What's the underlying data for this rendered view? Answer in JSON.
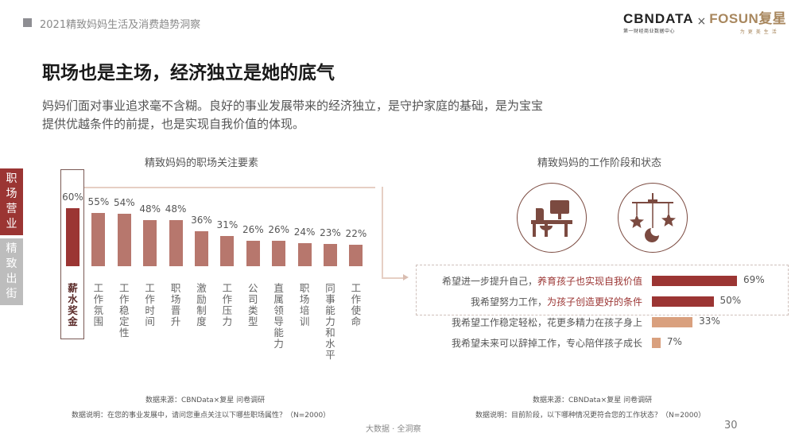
{
  "header": {
    "title": "2021精致妈妈生活及消费趋势洞察",
    "logo": {
      "cbn_main": "CBNDATA",
      "cbn_sub": "第一财经商业数据中心",
      "separator": "×",
      "fosun_main": "FOSUN复星",
      "fosun_sub": "为更美生活"
    }
  },
  "page": {
    "title": "职场也是主场，经济独立是她的底气",
    "intro": "妈妈们面对事业追求毫不含糊。良好的事业发展带来的经济独立，是守护家庭的基础，是为宝宝提供优越条件的前提，也是实现自我价值的体现。"
  },
  "side_tabs": [
    {
      "label": "职场营业",
      "active": true
    },
    {
      "label": "精致出街",
      "active": false
    }
  ],
  "colors": {
    "accent": "#9b3533",
    "bar_secondary": "#b7776d",
    "bar_light": "#d9a07e",
    "icon": "#7b4a40"
  },
  "chart_data": [
    {
      "type": "bar",
      "title": "精致妈妈的职场关注要素",
      "categories": [
        "薪水奖金",
        "工作氛围",
        "工作稳定性",
        "工作时间",
        "职场晋升",
        "激励制度",
        "工作压力",
        "公司类型",
        "直属领导能力",
        "职场培训",
        "同事能力和水平",
        "工作使命"
      ],
      "values": [
        60,
        55,
        54,
        48,
        48,
        36,
        31,
        26,
        26,
        24,
        23,
        22
      ],
      "value_labels": [
        "60%",
        "55%",
        "54%",
        "48%",
        "48%",
        "36%",
        "31%",
        "26%",
        "26%",
        "24%",
        "23%",
        "22%"
      ],
      "highlighted": "薪水奖金",
      "xlabel": "",
      "ylabel": "",
      "ylim": [
        0,
        70
      ],
      "grid": false,
      "source": "数据来源：CBNData×复星 问卷调研",
      "note": "数据说明：在您的事业发展中，请问您重点关注以下哪些职场属性？（N=2000）"
    },
    {
      "type": "bar",
      "orientation": "horizontal",
      "title": "精致妈妈的工作阶段和状态",
      "categories": [
        "希望进一步提升自己，养育孩子也实现自我价值",
        "我希望努力工作，为孩子创造更好的条件",
        "我希望工作稳定轻松，花更多精力在孩子身上",
        "我希望未来可以辞掉工作，专心陪伴孩子成长"
      ],
      "label_parts": [
        {
          "plain": "希望进一步提升自己，",
          "highlight": "养育孩子也实现自我价值"
        },
        {
          "plain": "我希望努力工作，",
          "highlight": "为孩子创造更好的条件"
        },
        {
          "plain": "我希望工作稳定轻松，花更多精力在孩子身上",
          "highlight": ""
        },
        {
          "plain": "我希望未来可以辞掉工作，专心陪伴孩子成长",
          "highlight": ""
        }
      ],
      "values": [
        69,
        50,
        33,
        7
      ],
      "value_labels": [
        "69%",
        "50%",
        "33%",
        "7%"
      ],
      "bar_colors": [
        "#9b3533",
        "#9b3533",
        "#d9a07e",
        "#d9a07e"
      ],
      "icons": [
        "office-desk-icon",
        "baby-mobile-icon"
      ],
      "xlim": [
        0,
        70
      ],
      "grid": false,
      "source": "数据来源：CBNData×复星 问卷调研",
      "note": "数据说明：目前阶段，以下哪种情况更符合您的工作状态？（N=2000）"
    }
  ],
  "footer": {
    "center": "大数据 · 全洞察",
    "page_number": "30"
  }
}
